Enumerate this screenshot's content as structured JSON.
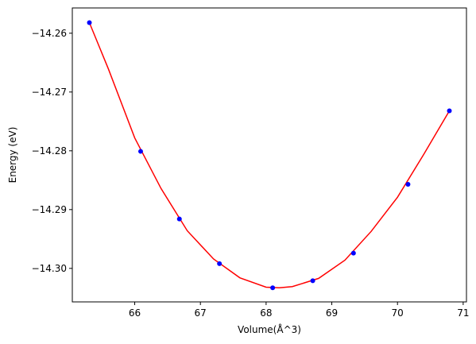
{
  "chart_data": {
    "type": "scatter",
    "title": "",
    "xlabel": "Volume(Å^3)",
    "ylabel": "Energy (eV)",
    "xlim": [
      65.05,
      71.05
    ],
    "ylim": [
      -14.3057,
      -14.2557
    ],
    "xticks": [
      66,
      67,
      68,
      69,
      70,
      71
    ],
    "xtick_labels": [
      "66",
      "67",
      "68",
      "69",
      "70",
      "71"
    ],
    "yticks": [
      -14.26,
      -14.27,
      -14.28,
      -14.29,
      -14.3
    ],
    "ytick_labels": [
      "−14.26",
      "−14.27",
      "−14.28",
      "−14.29",
      "−14.30"
    ],
    "grid": false,
    "series": [
      {
        "kind": "points",
        "color": "#0000ff",
        "x": [
          65.31,
          66.09,
          66.68,
          67.29,
          68.1,
          68.71,
          69.33,
          70.16,
          70.79
        ],
        "y": [
          -14.2582,
          -14.2801,
          -14.2916,
          -14.2992,
          -14.3033,
          -14.3021,
          -14.2974,
          -14.2857,
          -14.2732
        ]
      },
      {
        "kind": "fit_curve",
        "color": "#ff0000",
        "x": [
          65.31,
          65.6,
          66.0,
          66.4,
          66.8,
          67.2,
          67.6,
          68.0,
          68.2,
          68.4,
          68.8,
          69.2,
          69.6,
          70.0,
          70.4,
          70.79
        ],
        "y": [
          -14.2582,
          -14.2661,
          -14.2778,
          -14.2864,
          -14.2936,
          -14.2984,
          -14.3016,
          -14.3032,
          -14.3033,
          -14.3031,
          -14.3017,
          -14.2986,
          -14.2937,
          -14.2879,
          -14.2806,
          -14.2732
        ]
      }
    ]
  }
}
